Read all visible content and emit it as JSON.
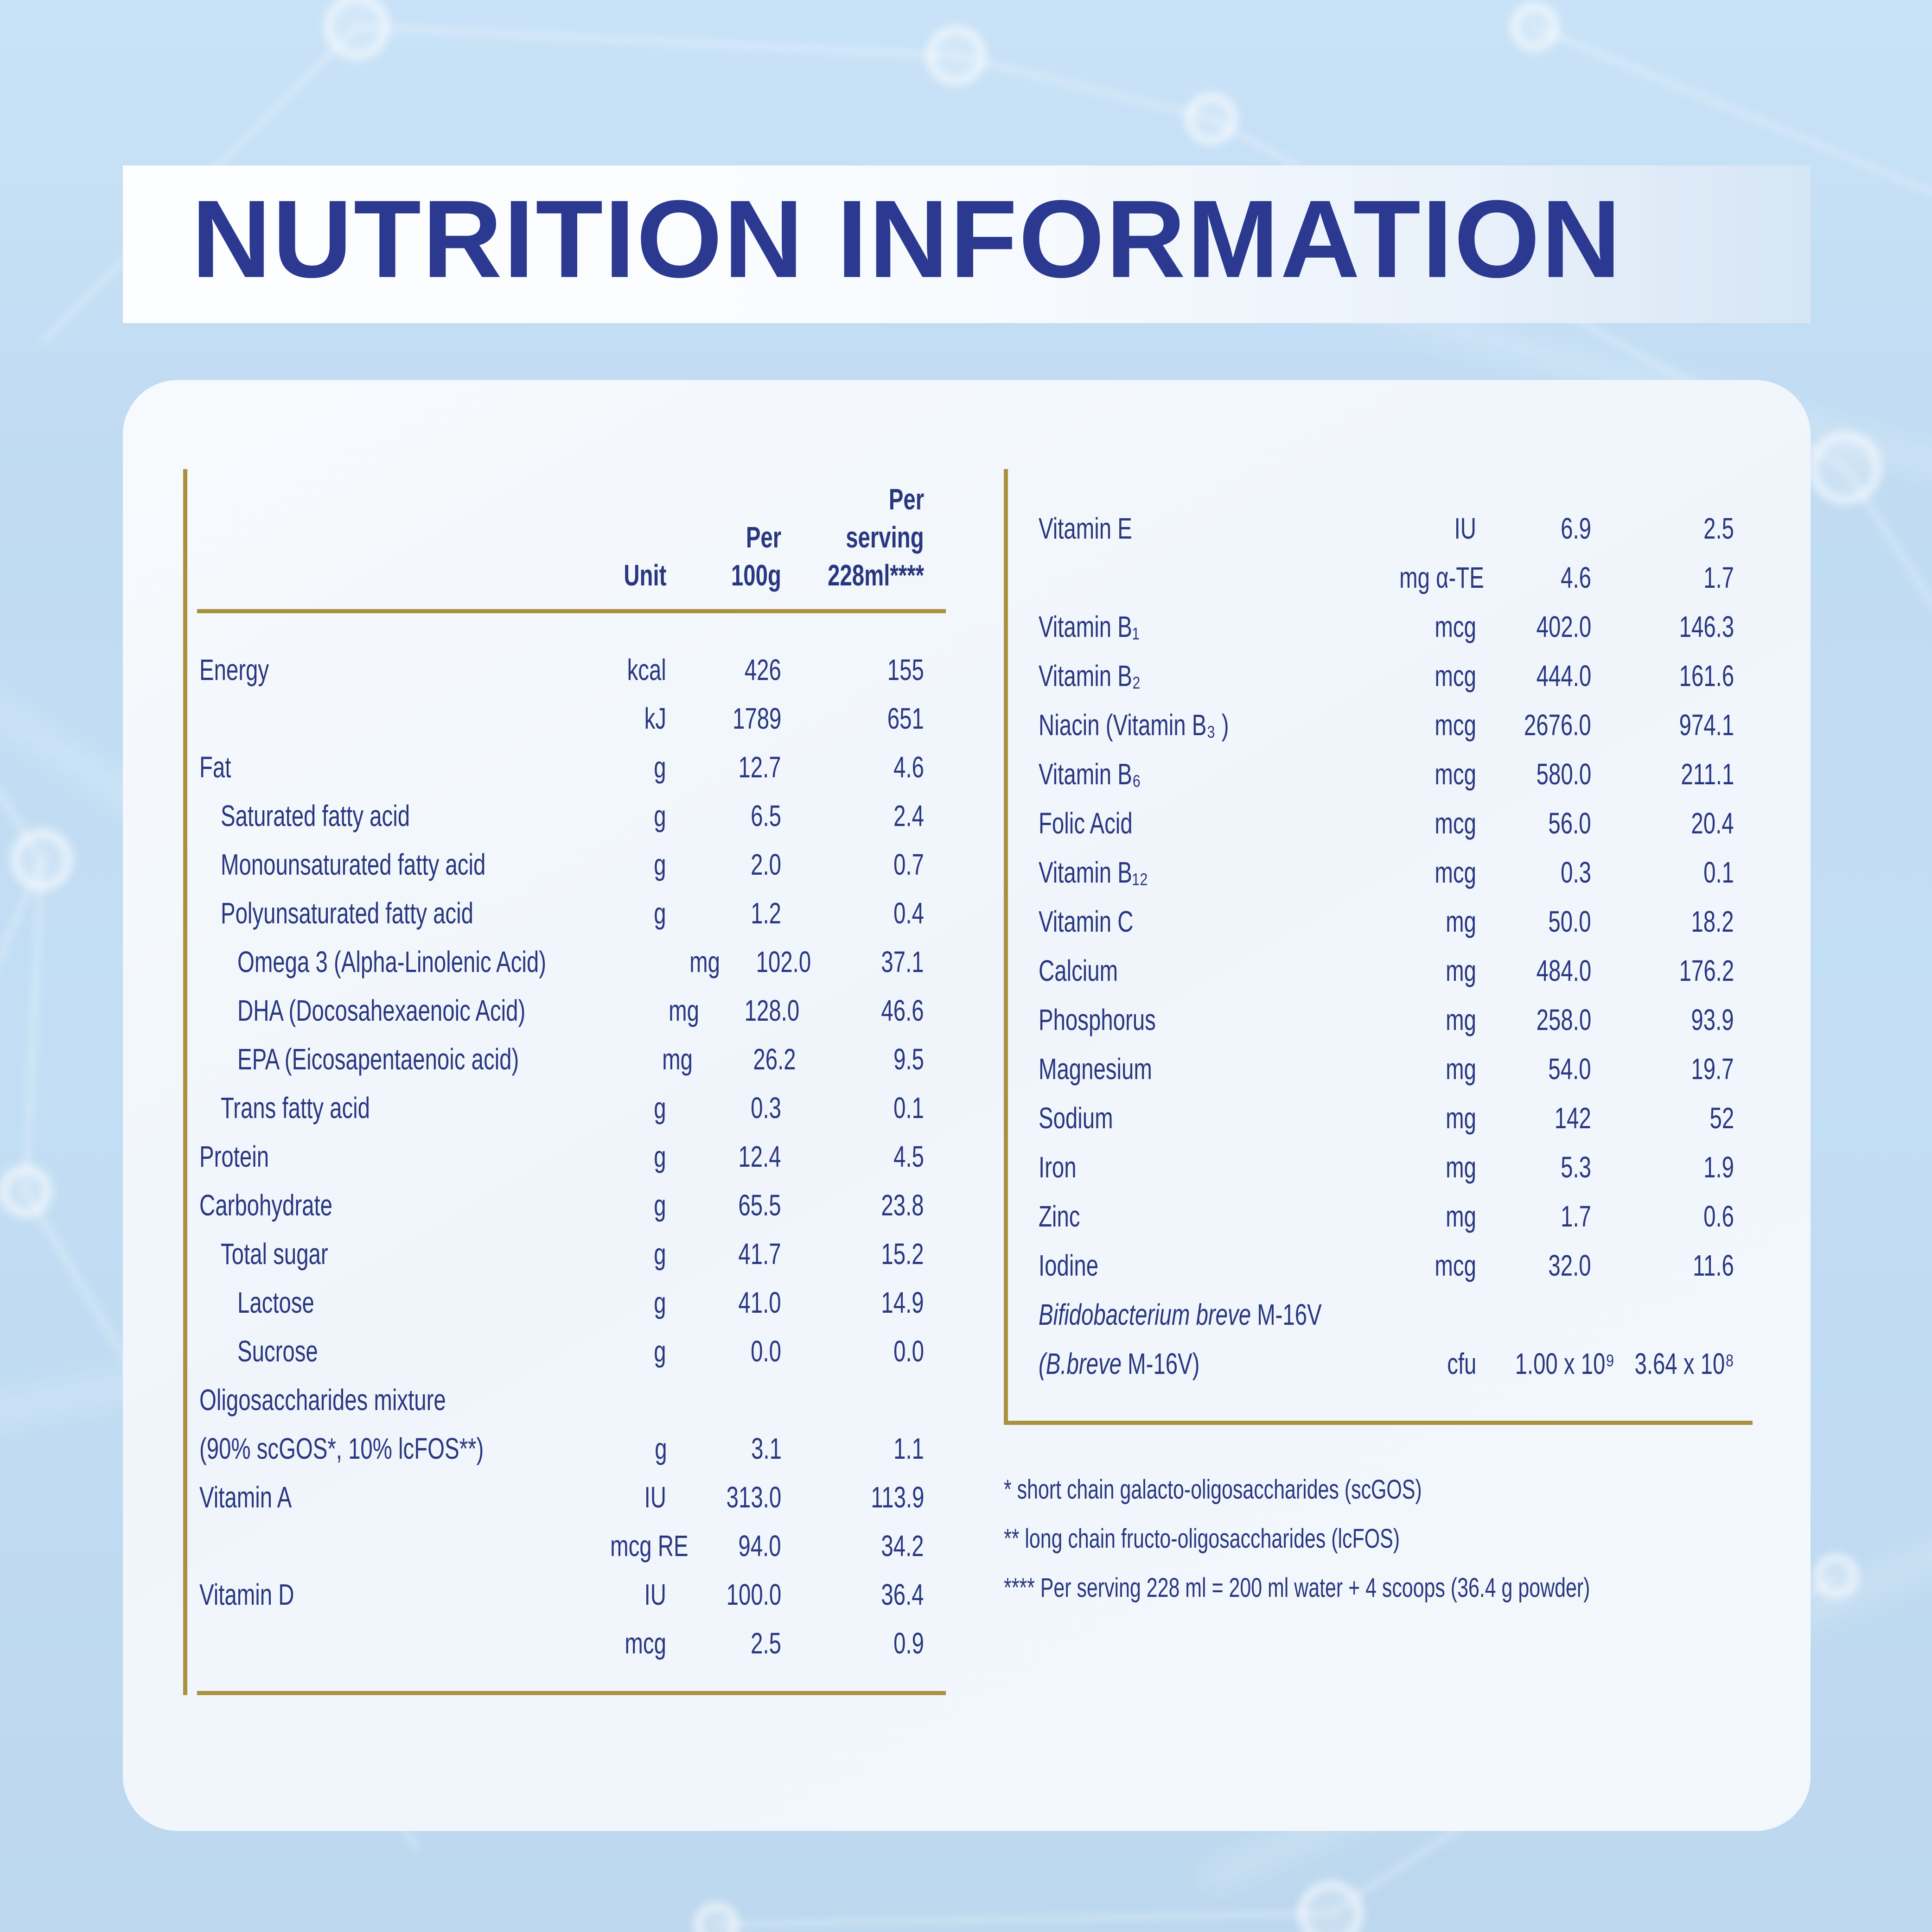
{
  "title": "NUTRITION INFORMATION",
  "colors": {
    "background_blue": "#c0dbf2",
    "card": "#f3f8fc",
    "navy_text": "#293780",
    "title_navy": "#2b3990",
    "gold_rule": "#a9913f"
  },
  "left_table": {
    "headers": {
      "unit": "Unit",
      "per100_line1": "Per",
      "per100_line2": "100g",
      "serving_line1": "Per",
      "serving_line2": "serving",
      "serving_line3": "228ml****"
    },
    "rows": [
      {
        "label": "Energy",
        "indent": 0,
        "unit": "kcal",
        "v100": "426",
        "vserv": "155"
      },
      {
        "label": "",
        "indent": 0,
        "unit": "kJ",
        "v100": "1789",
        "vserv": "651"
      },
      {
        "label": "Fat",
        "indent": 0,
        "unit": "g",
        "v100": "12.7",
        "vserv": "4.6"
      },
      {
        "label": "Saturated fatty acid",
        "indent": 1,
        "unit": "g",
        "v100": "6.5",
        "vserv": "2.4"
      },
      {
        "label": "Monounsaturated fatty acid",
        "indent": 1,
        "unit": "g",
        "v100": "2.0",
        "vserv": "0.7"
      },
      {
        "label": "Polyunsaturated fatty acid",
        "indent": 1,
        "unit": "g",
        "v100": "1.2",
        "vserv": "0.4"
      },
      {
        "label": "Omega 3 (Alpha-Linolenic Acid)",
        "indent": 2,
        "unit": "mg",
        "v100": "102.0",
        "vserv": "37.1"
      },
      {
        "label": "DHA (Docosahexaenoic Acid)",
        "indent": 2,
        "unit": "mg",
        "v100": "128.0",
        "vserv": "46.6"
      },
      {
        "label": "EPA (Eicosapentaenoic acid)",
        "indent": 2,
        "unit": "mg",
        "v100": "26.2",
        "vserv": "9.5"
      },
      {
        "label": "Trans fatty acid",
        "indent": 1,
        "unit": "g",
        "v100": "0.3",
        "vserv": "0.1"
      },
      {
        "label": "Protein",
        "indent": 0,
        "unit": "g",
        "v100": "12.4",
        "vserv": "4.5"
      },
      {
        "label": "Carbohydrate",
        "indent": 0,
        "unit": "g",
        "v100": "65.5",
        "vserv": "23.8"
      },
      {
        "label": "Total sugar",
        "indent": 1,
        "unit": "g",
        "v100": "41.7",
        "vserv": "15.2"
      },
      {
        "label": "Lactose",
        "indent": 2,
        "unit": "g",
        "v100": "41.0",
        "vserv": "14.9"
      },
      {
        "label": "Sucrose",
        "indent": 2,
        "unit": "g",
        "v100": "0.0",
        "vserv": "0.0"
      },
      {
        "label": "Oligosaccharides mixture",
        "indent": 0,
        "unit": "",
        "v100": "",
        "vserv": ""
      },
      {
        "label": "(90% scGOS*, 10% lcFOS**)",
        "indent": 0,
        "unit": "g",
        "v100": "3.1",
        "vserv": "1.1"
      },
      {
        "label": "Vitamin A",
        "indent": 0,
        "unit": "IU",
        "v100": "313.0",
        "vserv": "113.9"
      },
      {
        "label": "",
        "indent": 0,
        "unit": "mcg RE",
        "v100": "94.0",
        "vserv": "34.2"
      },
      {
        "label": "Vitamin D",
        "indent": 0,
        "unit": "IU",
        "v100": "100.0",
        "vserv": "36.4"
      },
      {
        "label": "",
        "indent": 0,
        "unit": "mcg",
        "v100": "2.5",
        "vserv": "0.9"
      }
    ]
  },
  "right_table": {
    "rows": [
      {
        "label": "Vitamin E",
        "indent": 0,
        "unit": "IU",
        "v100": "6.9",
        "vserv": "2.5"
      },
      {
        "label": "",
        "indent": 0,
        "unit": "mg α-TE",
        "v100": "4.6",
        "vserv": "1.7"
      },
      {
        "label": "Vitamin B₁",
        "indent": 0,
        "unit": "mcg",
        "v100": "402.0",
        "vserv": "146.3"
      },
      {
        "label": "Vitamin B₂",
        "indent": 0,
        "unit": "mcg",
        "v100": "444.0",
        "vserv": "161.6"
      },
      {
        "label": "Niacin (Vitamin B₃ )",
        "indent": 0,
        "unit": "mcg",
        "v100": "2676.0",
        "vserv": "974.1"
      },
      {
        "label": "Vitamin B₆",
        "indent": 0,
        "unit": "mcg",
        "v100": "580.0",
        "vserv": "211.1"
      },
      {
        "label": "Folic Acid",
        "indent": 0,
        "unit": "mcg",
        "v100": "56.0",
        "vserv": "20.4"
      },
      {
        "label": "Vitamin B₁₂",
        "indent": 0,
        "unit": "mcg",
        "v100": "0.3",
        "vserv": "0.1"
      },
      {
        "label": "Vitamin C",
        "indent": 0,
        "unit": "mg",
        "v100": "50.0",
        "vserv": "18.2"
      },
      {
        "label": "Calcium",
        "indent": 0,
        "unit": "mg",
        "v100": "484.0",
        "vserv": "176.2"
      },
      {
        "label": "Phosphorus",
        "indent": 0,
        "unit": "mg",
        "v100": "258.0",
        "vserv": "93.9"
      },
      {
        "label": "Magnesium",
        "indent": 0,
        "unit": "mg",
        "v100": "54.0",
        "vserv": "19.7"
      },
      {
        "label": "Sodium",
        "indent": 0,
        "unit": "mg",
        "v100": "142",
        "vserv": "52"
      },
      {
        "label": "Iron",
        "indent": 0,
        "unit": "mg",
        "v100": "5.3",
        "vserv": "1.9"
      },
      {
        "label": "Zinc",
        "indent": 0,
        "unit": "mg",
        "v100": "1.7",
        "vserv": "0.6"
      },
      {
        "label": "Iodine",
        "indent": 0,
        "unit": "mcg",
        "v100": "32.0",
        "vserv": "11.6"
      },
      {
        "label": " M-16V",
        "em": "Bifidobacterium breve",
        "indent": 0,
        "unit": "",
        "v100": "",
        "vserv": ""
      },
      {
        "label": " M-16V)",
        "em": "(B.breve",
        "indent": 0,
        "unit": "cfu",
        "v100": "1.00 x 10⁹",
        "vserv": "3.64 x 10⁸"
      }
    ]
  },
  "footnotes": [
    "* short chain galacto-oligosaccharides (scGOS)",
    "** long chain fructo-oligosaccharides (lcFOS)",
    "**** Per serving 228 ml = 200 ml water + 4 scoops (36.4 g powder)"
  ]
}
